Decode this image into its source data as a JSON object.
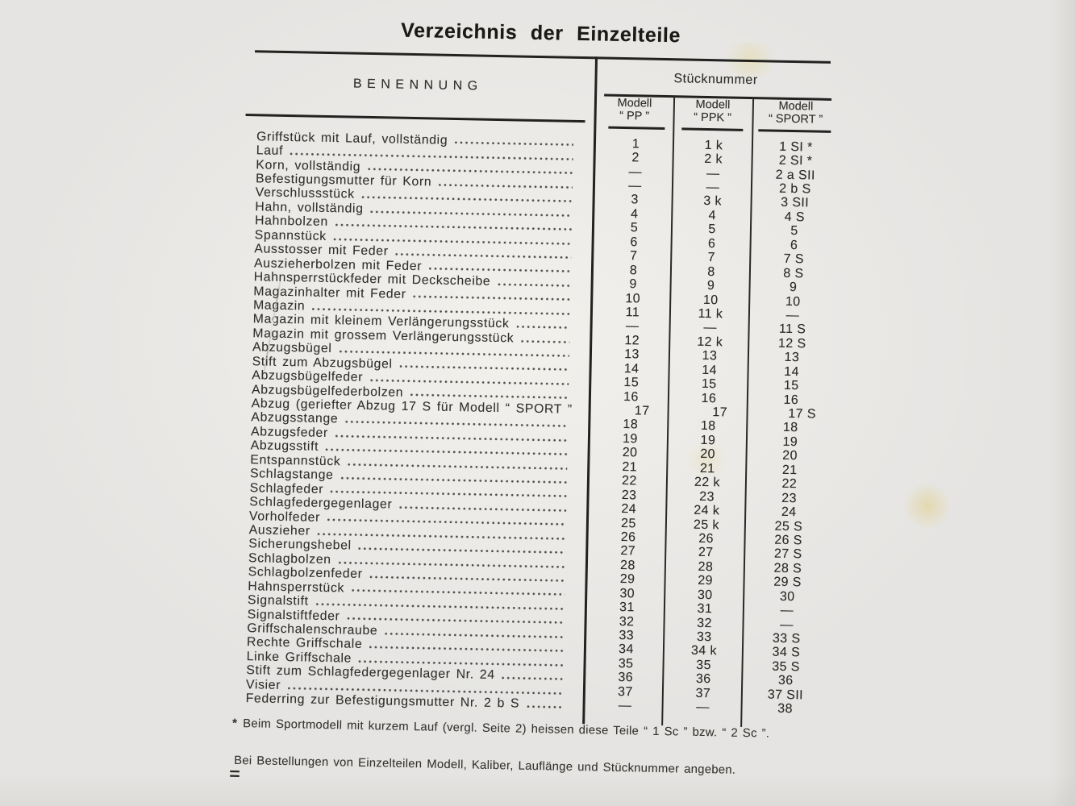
{
  "colors": {
    "paper": "#e5e4e2",
    "ink": "#2b2a26",
    "rule": "#232220"
  },
  "document": {
    "title": "Verzeichnis der Einzelteile",
    "table": {
      "name_column_header": "BENENNUNG",
      "number_group_header": "Stücknummer",
      "model_columns": [
        {
          "line1": "Modell",
          "line2": "“ PP ”"
        },
        {
          "line1": "Modell",
          "line2": "“ PPK ”"
        },
        {
          "line1": "Modell",
          "line2": "“ SPORT ”"
        }
      ],
      "rows": [
        {
          "name": "Griffstück mit Lauf, vollständig",
          "pp": "1",
          "ppk": "1 k",
          "sport": "1 SI *"
        },
        {
          "name": "Lauf",
          "pp": "2",
          "ppk": "2 k",
          "sport": "2 SI *"
        },
        {
          "name": "Korn, vollständig",
          "pp": "—",
          "ppk": "—",
          "sport": "2 a SII"
        },
        {
          "name": "Befestigungsmutter für Korn",
          "pp": "—",
          "ppk": "—",
          "sport": "2 b S"
        },
        {
          "name": "Verschlussstück",
          "pp": "3",
          "ppk": "3 k",
          "sport": "3 SII"
        },
        {
          "name": "Hahn, vollständig",
          "pp": "4",
          "ppk": "4",
          "sport": "4 S"
        },
        {
          "name": "Hahnbolzen",
          "pp": "5",
          "ppk": "5",
          "sport": "5"
        },
        {
          "name": "Spannstück",
          "pp": "6",
          "ppk": "6",
          "sport": "6"
        },
        {
          "name": "Ausstosser mit Feder",
          "pp": "7",
          "ppk": "7",
          "sport": "7 S"
        },
        {
          "name": "Auszieherbolzen mit Feder",
          "pp": "8",
          "ppk": "8",
          "sport": "8 S"
        },
        {
          "name": "Hahnsperrstückfeder mit Deckscheibe",
          "pp": "9",
          "ppk": "9",
          "sport": "9"
        },
        {
          "name": "Magazinhalter mit Feder",
          "pp": "10",
          "ppk": "10",
          "sport": "10"
        },
        {
          "name": "Magazin",
          "pp": "11",
          "ppk": "11 k",
          "sport": "—"
        },
        {
          "name": "Magazin mit kleinem Verlängerungsstück",
          "pp": "—",
          "ppk": "—",
          "sport": "11 S"
        },
        {
          "name": "Magazin mit grossem Verlängerungsstück",
          "pp": "12",
          "ppk": "12 k",
          "sport": "12 S"
        },
        {
          "name": "Abzugsbügel",
          "pp": "13",
          "ppk": "13",
          "sport": "13"
        },
        {
          "name": "Stift zum Abzugsbügel",
          "pp": "14",
          "ppk": "14",
          "sport": "14"
        },
        {
          "name": "Abzugsbügelfeder",
          "pp": "15",
          "ppk": "15",
          "sport": "15"
        },
        {
          "name": "Abzugsbügelfederbolzen",
          "pp": "16",
          "ppk": "16",
          "sport": "16"
        },
        {
          "name": "Abzug (geriefter Abzug 17 S für Modell “ SPORT ”",
          "pp": "17",
          "ppk": "17",
          "sport": "17 S"
        },
        {
          "name": "Abzugsstange",
          "pp": "18",
          "ppk": "18",
          "sport": "18"
        },
        {
          "name": "Abzugsfeder",
          "pp": "19",
          "ppk": "19",
          "sport": "19"
        },
        {
          "name": "Abzugsstift",
          "pp": "20",
          "ppk": "20",
          "sport": "20"
        },
        {
          "name": "Entspannstück",
          "pp": "21",
          "ppk": "21",
          "sport": "21"
        },
        {
          "name": "Schlagstange",
          "pp": "22",
          "ppk": "22 k",
          "sport": "22"
        },
        {
          "name": "Schlagfeder",
          "pp": "23",
          "ppk": "23",
          "sport": "23"
        },
        {
          "name": "Schlagfedergegenlager",
          "pp": "24",
          "ppk": "24 k",
          "sport": "24"
        },
        {
          "name": "Vorholfeder",
          "pp": "25",
          "ppk": "25 k",
          "sport": "25 S"
        },
        {
          "name": "Auszieher",
          "pp": "26",
          "ppk": "26",
          "sport": "26 S"
        },
        {
          "name": "Sicherungshebel",
          "pp": "27",
          "ppk": "27",
          "sport": "27 S"
        },
        {
          "name": "Schlagbolzen",
          "pp": "28",
          "ppk": "28",
          "sport": "28 S"
        },
        {
          "name": "Schlagbolzenfeder",
          "pp": "29",
          "ppk": "29",
          "sport": "29 S"
        },
        {
          "name": "Hahnsperrstück",
          "pp": "30",
          "ppk": "30",
          "sport": "30"
        },
        {
          "name": "Signalstift",
          "pp": "31",
          "ppk": "31",
          "sport": "—"
        },
        {
          "name": "Signalstiftfeder",
          "pp": "32",
          "ppk": "32",
          "sport": "—"
        },
        {
          "name": "Griffschalenschraube",
          "pp": "33",
          "ppk": "33",
          "sport": "33 S"
        },
        {
          "name": "Rechte Griffschale",
          "pp": "34",
          "ppk": "34 k",
          "sport": "34 S"
        },
        {
          "name": "Linke Griffschale",
          "pp": "35",
          "ppk": "35",
          "sport": "35 S"
        },
        {
          "name": "Stift zum Schlagfedergegenlager Nr. 24",
          "pp": "36",
          "ppk": "36",
          "sport": "36"
        },
        {
          "name": "Visier",
          "pp": "37",
          "ppk": "37",
          "sport": "37 SII"
        },
        {
          "name": "Federring zur Befestigungsmutter Nr. 2 b S",
          "pp": "—",
          "ppk": "—",
          "sport": "38"
        }
      ]
    },
    "footnotes": {
      "star_marker": "*",
      "star_text": "Beim Sportmodell mit kurzem Lauf (vergl. Seite 2) heissen diese Teile “ 1 Sc ” bzw. “ 2 Sc ”.",
      "order_note": "Bei Bestellungen von Einzelteilen Modell, Kaliber, Lauflänge und Stücknummer angeben."
    },
    "page_mark": "="
  }
}
